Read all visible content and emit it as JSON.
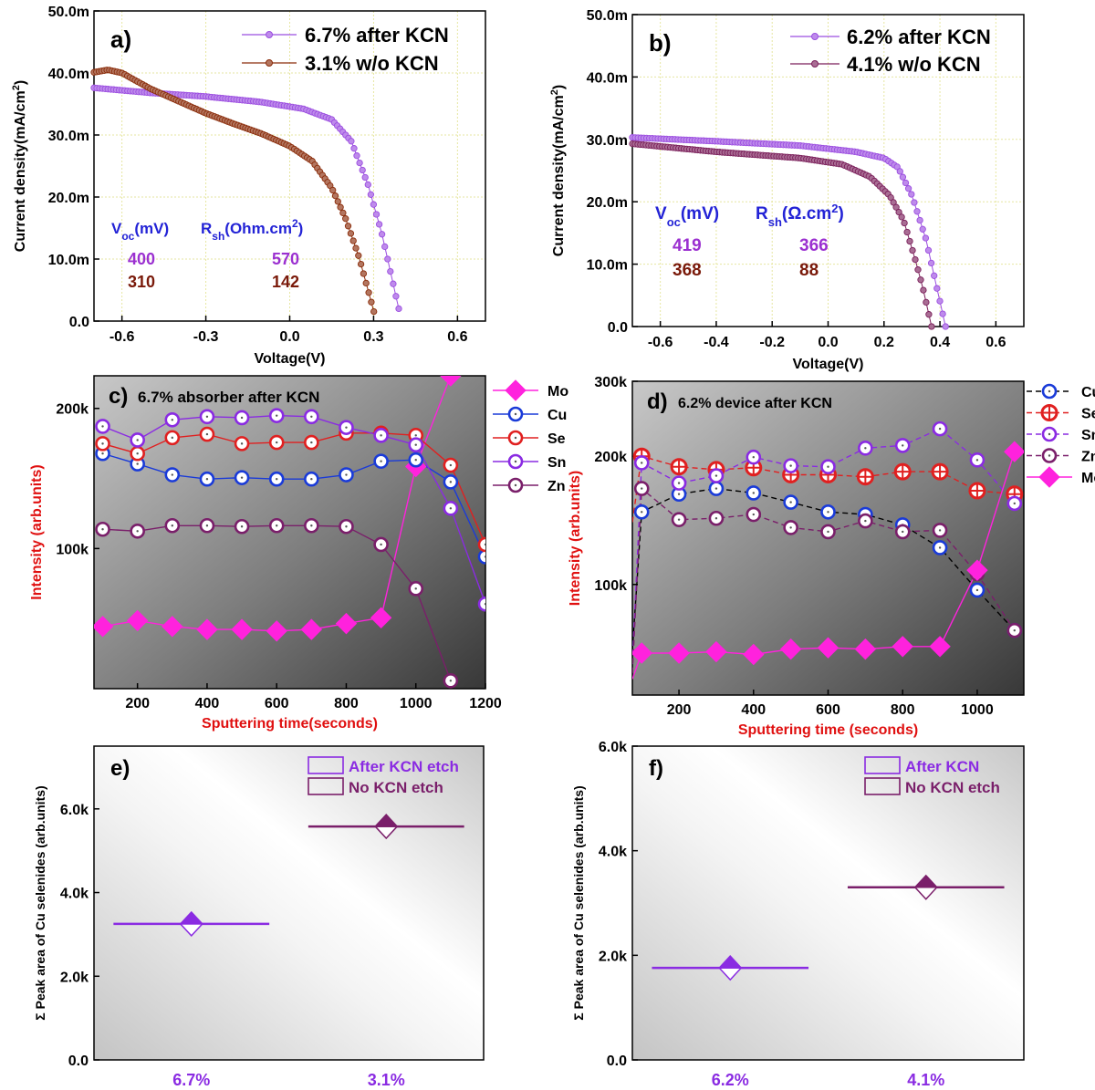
{
  "chart_data": [
    {
      "panel": "a",
      "type": "line",
      "panel_label": "a)",
      "xlabel": "Voltage(V)",
      "ylabel": "Current density(mA/cm",
      "ylabel_sup": "2",
      "ylabel_end": ")",
      "xlim": [
        -0.7,
        0.7
      ],
      "ylim": [
        0,
        50
      ],
      "xticks": [
        -0.6,
        -0.3,
        0.0,
        0.3,
        0.6
      ],
      "xtick_labels": [
        "-0.6",
        "-0.3",
        "0.0",
        "0.3",
        "0.6"
      ],
      "yticks": [
        0,
        10,
        20,
        30,
        40,
        50
      ],
      "ytick_labels": [
        "0.0",
        "10.0m",
        "20.0m",
        "30.0m",
        "40.0m",
        "50.0m"
      ],
      "legend": [
        "6.7% after KCN",
        "3.1% w/o KCN"
      ],
      "series": [
        {
          "name": "6.7% after KCN",
          "color": "#9b4de0",
          "voc": 0.4,
          "points": [
            [
              -0.7,
              37.6
            ],
            [
              -0.5,
              36.8
            ],
            [
              -0.3,
              36.2
            ],
            [
              -0.1,
              35.3
            ],
            [
              0.05,
              34.2
            ],
            [
              0.15,
              32.5
            ],
            [
              0.22,
              29
            ],
            [
              0.28,
              22
            ],
            [
              0.33,
              14
            ],
            [
              0.37,
              6
            ],
            [
              0.4,
              0
            ]
          ]
        },
        {
          "name": "3.1% w/o KCN",
          "color": "#8a2c0a",
          "voc": 0.31,
          "points": [
            [
              -0.7,
              40.1
            ],
            [
              -0.65,
              40.5
            ],
            [
              -0.6,
              40.0
            ],
            [
              -0.5,
              37.5
            ],
            [
              -0.4,
              35.5
            ],
            [
              -0.3,
              33.5
            ],
            [
              -0.2,
              31.8
            ],
            [
              -0.1,
              30.2
            ],
            [
              0.0,
              28.2
            ],
            [
              0.08,
              25.8
            ],
            [
              0.15,
              21.5
            ],
            [
              0.2,
              16.5
            ],
            [
              0.25,
              10
            ],
            [
              0.28,
              5
            ],
            [
              0.31,
              0
            ]
          ]
        }
      ],
      "table": {
        "h1": "V",
        "h1_sub": "oc",
        "h1_end": "(mV)",
        "h2": "R",
        "h2_sub": "sh",
        "h2_end": "(Ohm.cm",
        "h2_sup": "2",
        "h2_close": ")",
        "rows": [
          [
            "400",
            "570"
          ],
          [
            "310",
            "142"
          ]
        ]
      }
    },
    {
      "panel": "b",
      "type": "line",
      "panel_label": "b)",
      "xlabel": "Voltage(V)",
      "ylabel": "Current density(mA/cm",
      "ylabel_sup": "2",
      "ylabel_end": ")",
      "xlim": [
        -0.7,
        0.7
      ],
      "ylim": [
        0,
        50
      ],
      "xticks": [
        -0.6,
        -0.4,
        -0.2,
        0.0,
        0.2,
        0.4,
        0.6
      ],
      "xtick_labels": [
        "-0.6",
        "-0.4",
        "-0.2",
        "0.0",
        "0.2",
        "0.4",
        "0.6"
      ],
      "yticks": [
        0,
        10,
        20,
        30,
        40,
        50
      ],
      "ytick_labels": [
        "0.0",
        "10.0m",
        "20.0m",
        "30.0m",
        "40.0m",
        "50.0m"
      ],
      "legend": [
        "6.2% after KCN",
        "4.1% w/o KCN"
      ],
      "series": [
        {
          "name": "6.2% after KCN",
          "color": "#9b4de0",
          "voc": 0.42,
          "points": [
            [
              -0.7,
              30.3
            ],
            [
              -0.4,
              29.7
            ],
            [
              -0.1,
              29.0
            ],
            [
              0.1,
              28.0
            ],
            [
              0.2,
              27.0
            ],
            [
              0.25,
              25.5
            ],
            [
              0.3,
              21
            ],
            [
              0.35,
              14
            ],
            [
              0.38,
              8
            ],
            [
              0.42,
              0
            ]
          ]
        },
        {
          "name": "4.1% w/o KCN",
          "color": "#7a1f5a",
          "voc": 0.37,
          "points": [
            [
              -0.7,
              29.3
            ],
            [
              -0.4,
              28.0
            ],
            [
              -0.1,
              27.0
            ],
            [
              0.05,
              26.0
            ],
            [
              0.15,
              24.0
            ],
            [
              0.22,
              21
            ],
            [
              0.27,
              17
            ],
            [
              0.31,
              11
            ],
            [
              0.34,
              6
            ],
            [
              0.37,
              0
            ]
          ]
        }
      ],
      "table": {
        "h1": "V",
        "h1_sub": "oc",
        "h1_end": "(mV)",
        "h2": "R",
        "h2_sub": "sh",
        "h2_end": "(Ω.cm",
        "h2_sup": "2",
        "h2_close": ")",
        "rows": [
          [
            "419",
            "366"
          ],
          [
            "368",
            "88"
          ]
        ]
      }
    },
    {
      "panel": "c",
      "type": "line",
      "panel_label": "c)",
      "title": "6.7% absorber after KCN",
      "xlabel": "Sputtering time(seconds)",
      "ylabel": "Intensity (arb.units)",
      "yscale": "log",
      "xlim": [
        75,
        1200
      ],
      "ylim": [
        50,
        235
      ],
      "xticks": [
        200,
        400,
        600,
        800,
        1000,
        1200
      ],
      "xtick_labels": [
        "200",
        "400",
        "600",
        "800",
        "1000",
        "1200"
      ],
      "yticks": [
        100,
        200
      ],
      "ytick_labels": [
        "100k",
        "200k"
      ],
      "legend": [
        "Mo",
        "Cu",
        "Se",
        "Sn",
        "Zn"
      ],
      "series": [
        {
          "name": "Mo",
          "color": "#ff22dd",
          "marker": "diamond",
          "x": [
            100,
            200,
            300,
            400,
            500,
            600,
            700,
            800,
            900,
            1000,
            1100
          ],
          "y": [
            68,
            70,
            68,
            67,
            67,
            66.5,
            67,
            69,
            71,
            150,
            235
          ]
        },
        {
          "name": "Cu",
          "color": "#1a3bd8",
          "marker": "circle",
          "x": [
            100,
            200,
            300,
            400,
            500,
            600,
            700,
            800,
            900,
            1000,
            1100,
            1200
          ],
          "y": [
            160,
            152,
            144,
            141,
            142,
            141,
            141,
            144,
            154,
            155,
            139,
            96
          ]
        },
        {
          "name": "Se",
          "color": "#e02020",
          "marker": "circle",
          "x": [
            100,
            200,
            300,
            400,
            500,
            600,
            700,
            800,
            900,
            1000,
            1100,
            1200
          ],
          "y": [
            168,
            160,
            173,
            176,
            168,
            169,
            169,
            177,
            177,
            175,
            151,
            102
          ]
        },
        {
          "name": "Sn",
          "color": "#8a2be2",
          "marker": "circle",
          "x": [
            100,
            200,
            300,
            400,
            500,
            600,
            700,
            800,
            900,
            1000,
            1100,
            1200
          ],
          "y": [
            183,
            171,
            189,
            192,
            191,
            193,
            192,
            182,
            175,
            167,
            122,
            76
          ]
        },
        {
          "name": "Zn",
          "color": "#7a1f6a",
          "marker": "circle",
          "x": [
            100,
            200,
            300,
            400,
            500,
            600,
            700,
            800,
            900,
            1000,
            1100
          ],
          "y": [
            110,
            109,
            112,
            112,
            111.5,
            112,
            112,
            111.5,
            102,
            82,
            52
          ]
        }
      ]
    },
    {
      "panel": "d",
      "type": "line",
      "panel_label": "d)",
      "title": "6.2% device after KCN",
      "xlabel": "Sputtering time (seconds)",
      "ylabel": "Intensity (arb.units)",
      "yscale": "log",
      "xlim": [
        75,
        1125
      ],
      "ylim": [
        55,
        300
      ],
      "xticks": [
        200,
        400,
        600,
        800,
        1000
      ],
      "xtick_labels": [
        "200",
        "400",
        "600",
        "800",
        "1000"
      ],
      "yticks": [
        100,
        200,
        300
      ],
      "ytick_labels": [
        "100k",
        "200k",
        "300k"
      ],
      "legend": [
        "Cu",
        "Se",
        "Sn",
        "Zn",
        "Mo"
      ],
      "series": [
        {
          "name": "Cu",
          "color": "#1a3bd8",
          "marker": "circle",
          "line": "dashed",
          "x": [
            75,
            100,
            200,
            300,
            400,
            500,
            600,
            700,
            800,
            900,
            1000,
            1100
          ],
          "y": [
            70,
            148,
            163,
            168,
            164,
            156,
            148,
            146,
            138,
            122,
            97,
            78
          ]
        },
        {
          "name": "Se",
          "color": "#e02020",
          "marker": "circle-plus",
          "line": "dashed",
          "x": [
            75,
            100,
            200,
            300,
            400,
            500,
            600,
            700,
            800,
            900,
            1000,
            1100
          ],
          "y": [
            140,
            200,
            189,
            186,
            188,
            181,
            181,
            179,
            184,
            184,
            166,
            163
          ]
        },
        {
          "name": "Sn",
          "color": "#8a2be2",
          "marker": "circle",
          "line": "dashed",
          "x": [
            75,
            100,
            200,
            300,
            400,
            500,
            600,
            700,
            800,
            900,
            1000,
            1100
          ],
          "y": [
            65,
            193,
            173,
            180,
            199,
            190,
            189,
            209,
            212,
            232,
            196,
            155
          ]
        },
        {
          "name": "Zn",
          "color": "#7a1f6a",
          "marker": "circle",
          "line": "dashed",
          "x": [
            75,
            100,
            200,
            300,
            400,
            500,
            600,
            700,
            800,
            900,
            1000,
            1100
          ],
          "y": [
            62,
            168,
            142,
            143,
            146,
            136,
            133,
            141,
            133,
            134,
            106,
            78
          ]
        },
        {
          "name": "Mo",
          "color": "#ff22dd",
          "marker": "diamond",
          "line": "solid",
          "x": [
            75,
            100,
            200,
            300,
            400,
            500,
            600,
            700,
            800,
            900,
            1000,
            1100
          ],
          "y": [
            60,
            69,
            69,
            69.5,
            68.5,
            70.5,
            71,
            70.5,
            71.5,
            71.5,
            108,
            205
          ]
        }
      ]
    },
    {
      "panel": "e",
      "type": "scatter",
      "panel_label": "e)",
      "xlabel": "",
      "ylabel": "Σ Peak area of Cu selenides (arb.units)",
      "xlim": [
        0,
        1
      ],
      "ylim": [
        0,
        7.5
      ],
      "yticks": [
        0,
        2,
        4,
        6
      ],
      "ytick_labels": [
        "0.0",
        "2.0k",
        "4.0k",
        "6.0k"
      ],
      "categories": [
        "6.7%",
        "3.1%"
      ],
      "legend": [
        "After KCN etch",
        "No KCN etch"
      ],
      "series": [
        {
          "name": "After KCN etch",
          "color": "#8a2be2",
          "values": [
            3.25
          ]
        },
        {
          "name": "No KCN etch",
          "color": "#7a1f6a",
          "values": [
            5.58
          ]
        }
      ]
    },
    {
      "panel": "f",
      "type": "scatter",
      "panel_label": "f)",
      "xlabel": "",
      "ylabel": "Σ Peak area of Cu selenides (arb.units)",
      "xlim": [
        0,
        1
      ],
      "ylim": [
        0,
        6
      ],
      "yticks": [
        0,
        2,
        4,
        6
      ],
      "ytick_labels": [
        "0.0",
        "2.0k",
        "4.0k",
        "6.0k"
      ],
      "categories": [
        "6.2%",
        "4.1%"
      ],
      "legend": [
        "After KCN",
        "No KCN etch"
      ],
      "series": [
        {
          "name": "After KCN",
          "color": "#8a2be2",
          "values": [
            1.76
          ]
        },
        {
          "name": "No KCN etch",
          "color": "#7a1f6a",
          "values": [
            3.3
          ]
        }
      ]
    }
  ]
}
